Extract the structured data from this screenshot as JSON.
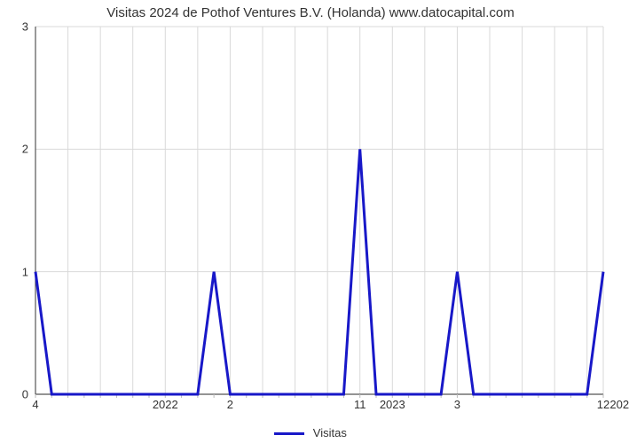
{
  "chart": {
    "type": "line",
    "title": "Visitas 2024 de Pothof Ventures B.V. (Holanda) www.datocapital.com",
    "title_fontsize": 15,
    "background_color": "#ffffff",
    "grid_color": "#d9d9d9",
    "axis_color": "#555555",
    "tick_label_fontsize": 13,
    "minor_tick_color": "#bbbbbb",
    "y": {
      "min": 0,
      "max": 3,
      "ticks": [
        0,
        1,
        2,
        3
      ]
    },
    "x": {
      "n_points": 36,
      "grid_step": 2,
      "major_labels": [
        {
          "i": 0,
          "label": "4"
        },
        {
          "i": 8,
          "label": "2022"
        },
        {
          "i": 12,
          "label": "2"
        },
        {
          "i": 20,
          "label": "11"
        },
        {
          "i": 22,
          "label": "2023"
        },
        {
          "i": 26,
          "label": "3"
        },
        {
          "i": 35,
          "label": "12"
        },
        {
          "i": 36,
          "label": "202"
        }
      ],
      "minor_tick_every": 1
    },
    "series": {
      "name": "Visitas",
      "color": "#1818c8",
      "line_width": 3,
      "values": [
        1,
        0,
        0,
        0,
        0,
        0,
        0,
        0,
        0,
        0,
        0,
        1,
        0,
        0,
        0,
        0,
        0,
        0,
        0,
        0,
        2,
        0,
        0,
        0,
        0,
        0,
        1,
        0,
        0,
        0,
        0,
        0,
        0,
        0,
        0,
        1
      ]
    }
  },
  "legend": {
    "label": "Visitas"
  }
}
